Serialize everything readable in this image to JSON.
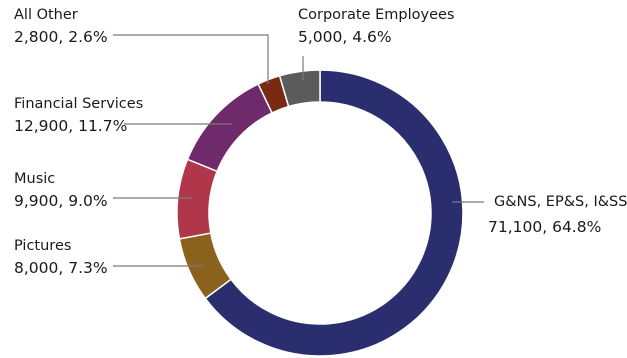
{
  "chart_data": {
    "type": "pie",
    "donut": true,
    "unit": "",
    "slices": [
      {
        "label": "G&NS, EP&S, I&SS",
        "value": 71100,
        "percent": "64.8%",
        "value_text": "71,100",
        "color": "#2a2e6e"
      },
      {
        "label": "Pictures",
        "value": 8000,
        "percent": "7.3%",
        "value_text": "8,000",
        "color": "#8a621e"
      },
      {
        "label": "Music",
        "value": 9900,
        "percent": "9.0%",
        "value_text": "9,900",
        "color": "#b0364a"
      },
      {
        "label": "Financial Services",
        "value": 12900,
        "percent": "11.7%",
        "value_text": "12,900",
        "color": "#6e2a6a"
      },
      {
        "label": "All Other",
        "value": 2800,
        "percent": "2.6%",
        "value_text": "2,800",
        "color": "#7a2a10"
      },
      {
        "label": "Corporate Employees",
        "value": 5000,
        "percent": "4.6%",
        "value_text": "5,000",
        "color": "#5b5b5b"
      }
    ]
  }
}
